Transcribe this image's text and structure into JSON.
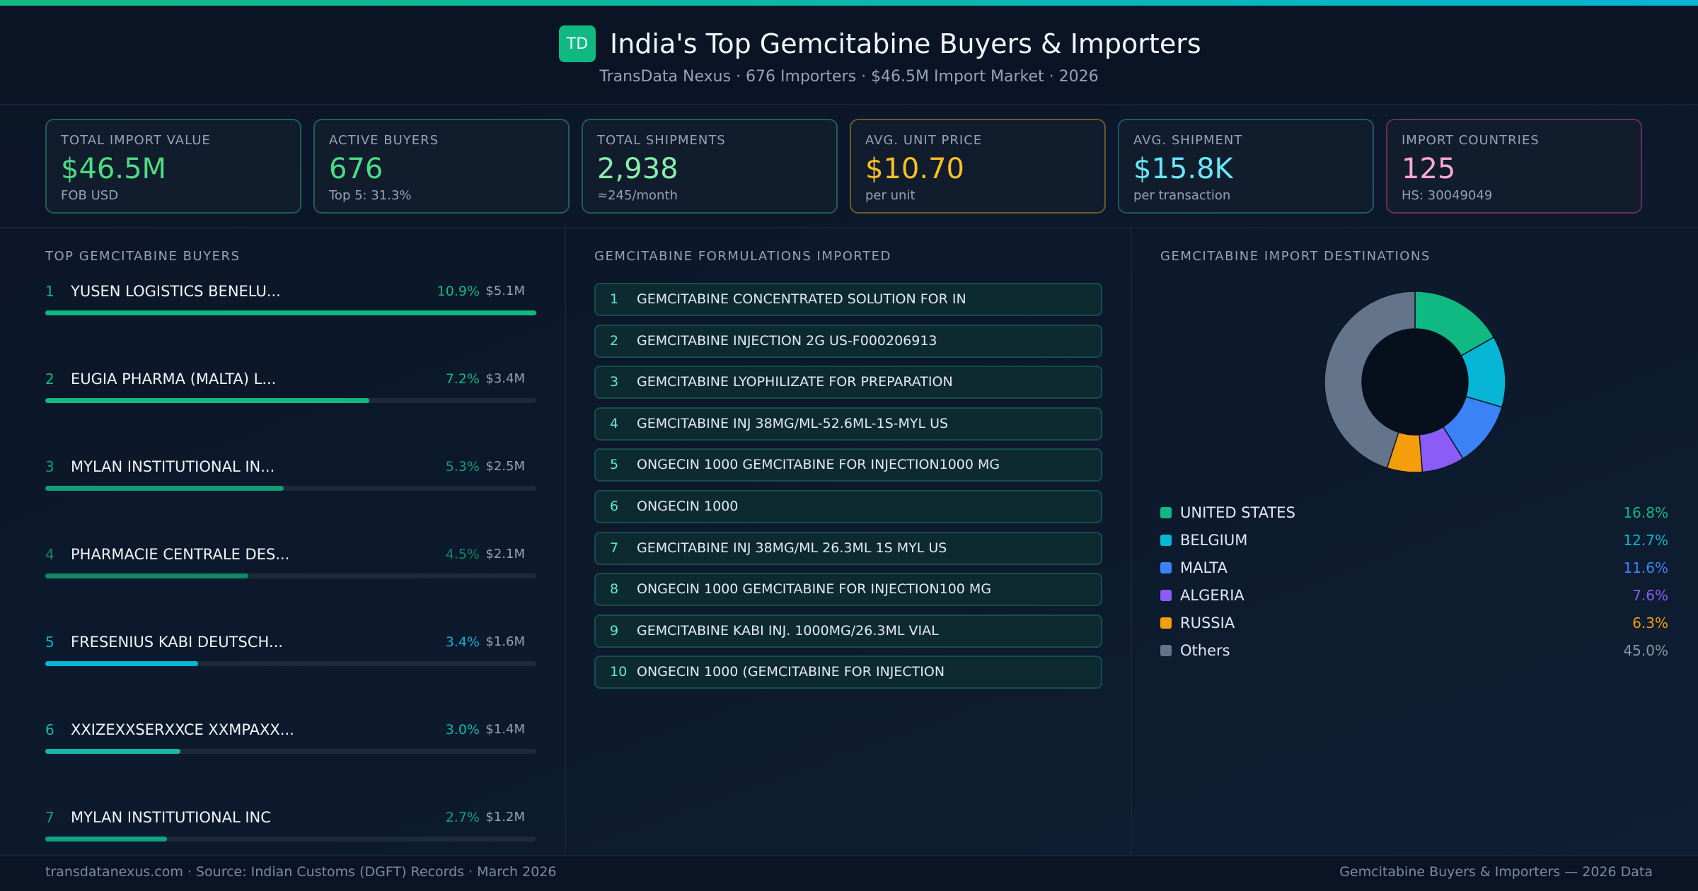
{
  "header": {
    "logo": "TD",
    "title": "India's Top Gemcitabine Buyers & Importers",
    "subtitle": "TransData Nexus · 676 Importers · $46.5M Import Market · 2026"
  },
  "kpis": [
    {
      "label": "TOTAL IMPORT VALUE",
      "value": "$46.5M",
      "note": "FOB USD",
      "color": "#4ade80",
      "border": "#1f5f56"
    },
    {
      "label": "ACTIVE BUYERS",
      "value": "676",
      "note": "Top 5: 31.3%",
      "color": "#4ade80",
      "border": "#1f5f56"
    },
    {
      "label": "TOTAL SHIPMENTS",
      "value": "2,938",
      "note": "≈245/month",
      "color": "#86efac",
      "border": "#1f5f56"
    },
    {
      "label": "AVG. UNIT PRICE",
      "value": "$10.70",
      "note": "per unit",
      "color": "#fbbf24",
      "border": "#6b5a24"
    },
    {
      "label": "AVG. SHIPMENT",
      "value": "$15.8K",
      "note": "per transaction",
      "color": "#67e8f9",
      "border": "#1d5868"
    },
    {
      "label": "IMPORT COUNTRIES",
      "value": "125",
      "note": "HS: 30049049",
      "color": "#f9a8d4",
      "border": "#6b2e55"
    }
  ],
  "buyers": {
    "title": "TOP GEMCITABINE BUYERS",
    "items": [
      {
        "rank": "1",
        "name": "YUSEN LOGISTICS BENELU...",
        "share": 10.9,
        "share_label": "10.9%",
        "value": "$5.1M",
        "color": "#10b981"
      },
      {
        "rank": "2",
        "name": "EUGIA PHARMA (MALTA) L...",
        "share": 7.2,
        "share_label": "7.2%",
        "value": "$3.4M",
        "color": "#10b981"
      },
      {
        "rank": "3",
        "name": "MYLAN INSTITUTIONAL IN...",
        "share": 5.3,
        "share_label": "5.3%",
        "value": "$2.5M",
        "color": "#0f9f75"
      },
      {
        "rank": "4",
        "name": "PHARMACIE CENTRALE DES...",
        "share": 4.5,
        "share_label": "4.5%",
        "value": "$2.1M",
        "color": "#0d8a66"
      },
      {
        "rank": "5",
        "name": "FRESENIUS KABI DEUTSCH...",
        "share": 3.4,
        "share_label": "3.4%",
        "value": "$1.6M",
        "color": "#06b6d4"
      },
      {
        "rank": "6",
        "name": "XXIZEXXSERXXCE XXMPAXX...",
        "share": 3.0,
        "share_label": "3.0%",
        "value": "$1.4M",
        "color": "#14b8a6"
      },
      {
        "rank": "7",
        "name": "MYLAN INSTITUTIONAL INC",
        "share": 2.7,
        "share_label": "2.7%",
        "value": "$1.2M",
        "color": "#10a37f"
      }
    ]
  },
  "formulations": {
    "title": "GEMCITABINE FORMULATIONS IMPORTED",
    "items": [
      {
        "rank": "1",
        "name": "GEMCITABINE CONCENTRATED SOLUTION FOR IN"
      },
      {
        "rank": "2",
        "name": "GEMCITABINE INJECTION 2G US-F000206913"
      },
      {
        "rank": "3",
        "name": "GEMCITABINE LYOPHILIZATE FOR PREPARATION"
      },
      {
        "rank": "4",
        "name": "GEMCITABINE INJ 38MG/ML-52.6ML-1S-MYL US"
      },
      {
        "rank": "5",
        "name": "ONGECIN 1000 GEMCITABINE FOR INJECTION1000 MG"
      },
      {
        "rank": "6",
        "name": "ONGECIN 1000"
      },
      {
        "rank": "7",
        "name": "GEMCITABINE INJ 38MG/ML 26.3ML 1S MYL US"
      },
      {
        "rank": "8",
        "name": "ONGECIN 1000 GEMCITABINE FOR INJECTION100 MG"
      },
      {
        "rank": "9",
        "name": "GEMCITABINE KABI INJ. 1000MG/26.3ML VIAL"
      },
      {
        "rank": "10",
        "name": "ONGECIN 1000 (GEMCITABINE FOR INJECTION"
      }
    ]
  },
  "chart_data": {
    "type": "donut",
    "title": "GEMCITABINE IMPORT DESTINATIONS",
    "categories": [
      "UNITED STATES",
      "BELGIUM",
      "MALTA",
      "ALGERIA",
      "RUSSIA",
      "Others"
    ],
    "values": [
      16.8,
      12.7,
      11.6,
      7.6,
      6.3,
      45.0
    ],
    "value_labels": [
      "16.8%",
      "12.7%",
      "11.6%",
      "7.6%",
      "6.3%",
      "45.0%"
    ],
    "colors": [
      "#10b981",
      "#06b6d4",
      "#3b82f6",
      "#8b5cf6",
      "#f59e0b",
      "#64748b"
    ]
  },
  "footer": {
    "left": "transdatanexus.com · Source: Indian Customs (DGFT) Records · March 2026",
    "right": "Gemcitabine Buyers & Importers — 2026 Data"
  }
}
